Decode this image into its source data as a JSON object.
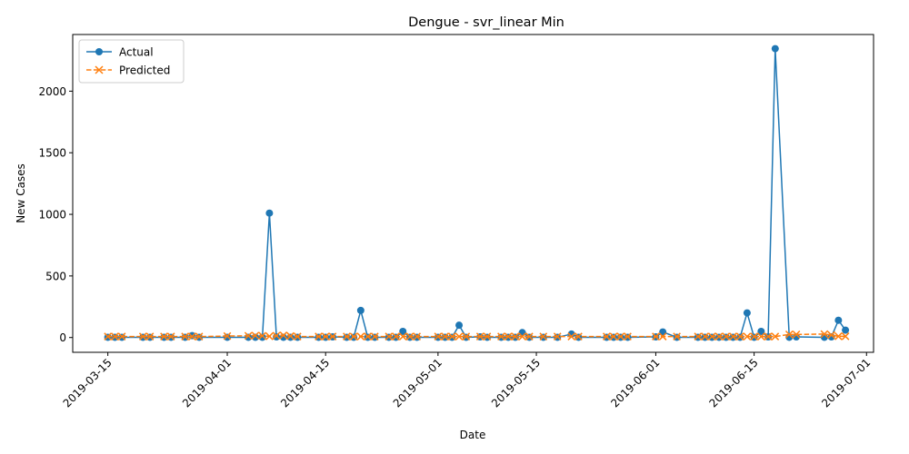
{
  "chart_data": {
    "type": "line",
    "title": "Dengue - svr_linear Min",
    "xlabel": "Date",
    "ylabel": "New Cases",
    "x_ticks": [
      "2019-03-15",
      "2019-04-01",
      "2019-04-15",
      "2019-05-01",
      "2019-05-15",
      "2019-06-01",
      "2019-06-15",
      "2019-07-01"
    ],
    "y_ticks": [
      0,
      500,
      1000,
      1500,
      2000
    ],
    "xlim": [
      "2019-03-10",
      "2019-07-02"
    ],
    "ylim": [
      -120,
      2460
    ],
    "grid": false,
    "legend_position": "top-left",
    "series": [
      {
        "name": "Actual",
        "color": "#1f77b4",
        "marker": "circle",
        "line": "solid",
        "points": [
          [
            "2019-03-15",
            2
          ],
          [
            "2019-03-16",
            2
          ],
          [
            "2019-03-17",
            2
          ],
          [
            "2019-03-20",
            2
          ],
          [
            "2019-03-21",
            2
          ],
          [
            "2019-03-23",
            2
          ],
          [
            "2019-03-24",
            2
          ],
          [
            "2019-03-26",
            2
          ],
          [
            "2019-03-27",
            15
          ],
          [
            "2019-03-28",
            2
          ],
          [
            "2019-04-01",
            2
          ],
          [
            "2019-04-04",
            2
          ],
          [
            "2019-04-05",
            2
          ],
          [
            "2019-04-06",
            2
          ],
          [
            "2019-04-07",
            1010
          ],
          [
            "2019-04-08",
            5
          ],
          [
            "2019-04-09",
            2
          ],
          [
            "2019-04-10",
            2
          ],
          [
            "2019-04-11",
            2
          ],
          [
            "2019-04-14",
            2
          ],
          [
            "2019-04-15",
            2
          ],
          [
            "2019-04-16",
            5
          ],
          [
            "2019-04-18",
            2
          ],
          [
            "2019-04-19",
            2
          ],
          [
            "2019-04-20",
            220
          ],
          [
            "2019-04-21",
            2
          ],
          [
            "2019-04-22",
            2
          ],
          [
            "2019-04-24",
            2
          ],
          [
            "2019-04-25",
            2
          ],
          [
            "2019-04-26",
            50
          ],
          [
            "2019-04-27",
            2
          ],
          [
            "2019-04-28",
            2
          ],
          [
            "2019-05-01",
            2
          ],
          [
            "2019-05-02",
            2
          ],
          [
            "2019-05-03",
            2
          ],
          [
            "2019-05-04",
            100
          ],
          [
            "2019-05-05",
            2
          ],
          [
            "2019-05-07",
            5
          ],
          [
            "2019-05-08",
            2
          ],
          [
            "2019-05-10",
            2
          ],
          [
            "2019-05-11",
            2
          ],
          [
            "2019-05-12",
            2
          ],
          [
            "2019-05-13",
            40
          ],
          [
            "2019-05-14",
            2
          ],
          [
            "2019-05-16",
            2
          ],
          [
            "2019-05-18",
            2
          ],
          [
            "2019-05-20",
            28
          ],
          [
            "2019-05-21",
            2
          ],
          [
            "2019-05-25",
            2
          ],
          [
            "2019-05-26",
            2
          ],
          [
            "2019-05-27",
            2
          ],
          [
            "2019-05-28",
            2
          ],
          [
            "2019-06-01",
            5
          ],
          [
            "2019-06-02",
            45
          ],
          [
            "2019-06-04",
            2
          ],
          [
            "2019-06-07",
            2
          ],
          [
            "2019-06-08",
            2
          ],
          [
            "2019-06-09",
            2
          ],
          [
            "2019-06-10",
            2
          ],
          [
            "2019-06-11",
            2
          ],
          [
            "2019-06-12",
            2
          ],
          [
            "2019-06-13",
            2
          ],
          [
            "2019-06-14",
            200
          ],
          [
            "2019-06-15",
            2
          ],
          [
            "2019-06-16",
            50
          ],
          [
            "2019-06-17",
            5
          ],
          [
            "2019-06-18",
            2345
          ],
          [
            "2019-06-20",
            2
          ],
          [
            "2019-06-21",
            5
          ],
          [
            "2019-06-25",
            2
          ],
          [
            "2019-06-26",
            5
          ],
          [
            "2019-06-27",
            140
          ],
          [
            "2019-06-28",
            60
          ]
        ]
      },
      {
        "name": "Predicted",
        "color": "#ff7f0e",
        "marker": "x",
        "line": "dashed",
        "points": [
          [
            "2019-03-15",
            8
          ],
          [
            "2019-03-16",
            8
          ],
          [
            "2019-03-17",
            8
          ],
          [
            "2019-03-20",
            8
          ],
          [
            "2019-03-21",
            8
          ],
          [
            "2019-03-23",
            8
          ],
          [
            "2019-03-24",
            8
          ],
          [
            "2019-03-26",
            8
          ],
          [
            "2019-03-27",
            8
          ],
          [
            "2019-03-28",
            8
          ],
          [
            "2019-04-01",
            12
          ],
          [
            "2019-04-04",
            14
          ],
          [
            "2019-04-05",
            16
          ],
          [
            "2019-04-06",
            14
          ],
          [
            "2019-04-07",
            10
          ],
          [
            "2019-04-08",
            15
          ],
          [
            "2019-04-09",
            18
          ],
          [
            "2019-04-10",
            12
          ],
          [
            "2019-04-11",
            8
          ],
          [
            "2019-04-14",
            8
          ],
          [
            "2019-04-15",
            8
          ],
          [
            "2019-04-16",
            8
          ],
          [
            "2019-04-18",
            8
          ],
          [
            "2019-04-19",
            8
          ],
          [
            "2019-04-20",
            8
          ],
          [
            "2019-04-21",
            8
          ],
          [
            "2019-04-22",
            8
          ],
          [
            "2019-04-24",
            8
          ],
          [
            "2019-04-25",
            8
          ],
          [
            "2019-04-26",
            8
          ],
          [
            "2019-04-27",
            8
          ],
          [
            "2019-04-28",
            8
          ],
          [
            "2019-05-01",
            8
          ],
          [
            "2019-05-02",
            8
          ],
          [
            "2019-05-03",
            8
          ],
          [
            "2019-05-04",
            8
          ],
          [
            "2019-05-05",
            8
          ],
          [
            "2019-05-07",
            8
          ],
          [
            "2019-05-08",
            8
          ],
          [
            "2019-05-10",
            8
          ],
          [
            "2019-05-11",
            8
          ],
          [
            "2019-05-12",
            8
          ],
          [
            "2019-05-13",
            8
          ],
          [
            "2019-05-14",
            8
          ],
          [
            "2019-05-16",
            8
          ],
          [
            "2019-05-18",
            8
          ],
          [
            "2019-05-20",
            8
          ],
          [
            "2019-05-21",
            8
          ],
          [
            "2019-05-25",
            8
          ],
          [
            "2019-05-26",
            8
          ],
          [
            "2019-05-27",
            8
          ],
          [
            "2019-05-28",
            8
          ],
          [
            "2019-06-01",
            8
          ],
          [
            "2019-06-02",
            8
          ],
          [
            "2019-06-04",
            8
          ],
          [
            "2019-06-07",
            8
          ],
          [
            "2019-06-08",
            8
          ],
          [
            "2019-06-09",
            8
          ],
          [
            "2019-06-10",
            8
          ],
          [
            "2019-06-11",
            8
          ],
          [
            "2019-06-12",
            8
          ],
          [
            "2019-06-13",
            8
          ],
          [
            "2019-06-14",
            8
          ],
          [
            "2019-06-15",
            8
          ],
          [
            "2019-06-16",
            8
          ],
          [
            "2019-06-17",
            8
          ],
          [
            "2019-06-18",
            8
          ],
          [
            "2019-06-20",
            25
          ],
          [
            "2019-06-21",
            25
          ],
          [
            "2019-06-25",
            28
          ],
          [
            "2019-06-26",
            20
          ],
          [
            "2019-06-27",
            10
          ],
          [
            "2019-06-28",
            10
          ]
        ]
      }
    ]
  }
}
